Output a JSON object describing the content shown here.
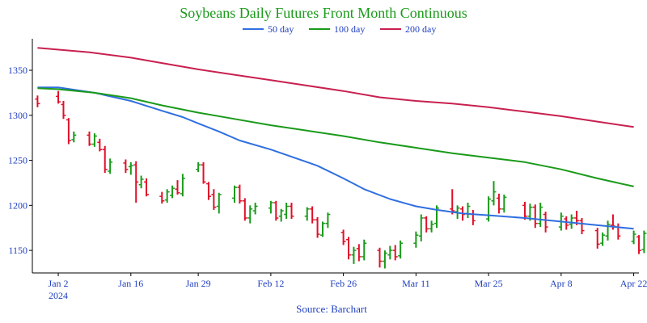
{
  "chart_data": {
    "type": "candlestick-with-lines",
    "title": "Soybeans Daily Futures Front Month Continuous",
    "source": "Source: Barchart",
    "ylim": [
      1125,
      1385
    ],
    "xlim": [
      "2023-12-28",
      "2024-04-23"
    ],
    "y_ticks": [
      1150,
      1200,
      1250,
      1300,
      1350
    ],
    "x_ticks": [
      {
        "date": "2024-01-02",
        "label": "Jan 2",
        "sublabel": "2024"
      },
      {
        "date": "2024-01-16",
        "label": "Jan 16",
        "sublabel": ""
      },
      {
        "date": "2024-01-29",
        "label": "Jan 29",
        "sublabel": ""
      },
      {
        "date": "2024-02-12",
        "label": "Feb 12",
        "sublabel": ""
      },
      {
        "date": "2024-02-26",
        "label": "Feb 26",
        "sublabel": ""
      },
      {
        "date": "2024-03-11",
        "label": "Mar 11",
        "sublabel": ""
      },
      {
        "date": "2024-03-25",
        "label": "Mar 25",
        "sublabel": ""
      },
      {
        "date": "2024-04-08",
        "label": "Apr 8",
        "sublabel": ""
      },
      {
        "date": "2024-04-22",
        "label": "Apr 22",
        "sublabel": ""
      }
    ],
    "colors": {
      "up": "#1a9a1a",
      "down": "#e0102a"
    },
    "legend": [
      {
        "name": "50 day",
        "color": "#2f6fdf"
      },
      {
        "name": "100 day",
        "color": "#1a9a1a"
      },
      {
        "name": "200 day",
        "color": "#c82050"
      }
    ],
    "series": [
      {
        "name": "50 day",
        "color": "#2f6fdf",
        "points": [
          [
            "2023-12-29",
            1331
          ],
          [
            "2024-01-02",
            1331
          ],
          [
            "2024-01-09",
            1325
          ],
          [
            "2024-01-16",
            1316
          ],
          [
            "2024-01-22",
            1305
          ],
          [
            "2024-01-26",
            1298
          ],
          [
            "2024-01-29",
            1291
          ],
          [
            "2024-02-02",
            1282
          ],
          [
            "2024-02-06",
            1272
          ],
          [
            "2024-02-12",
            1262
          ],
          [
            "2024-02-17",
            1252
          ],
          [
            "2024-02-21",
            1244
          ],
          [
            "2024-02-26",
            1230
          ],
          [
            "2024-03-01",
            1218
          ],
          [
            "2024-03-06",
            1207
          ],
          [
            "2024-03-11",
            1199
          ],
          [
            "2024-03-15",
            1195
          ],
          [
            "2024-03-20",
            1191
          ],
          [
            "2024-03-25",
            1189
          ],
          [
            "2024-04-01",
            1186
          ],
          [
            "2024-04-08",
            1182
          ],
          [
            "2024-04-15",
            1178
          ],
          [
            "2024-04-22",
            1174
          ]
        ]
      },
      {
        "name": "100 day",
        "color": "#1a9a1a",
        "points": [
          [
            "2023-12-29",
            1330
          ],
          [
            "2024-01-02",
            1329
          ],
          [
            "2024-01-09",
            1325
          ],
          [
            "2024-01-16",
            1319
          ],
          [
            "2024-01-22",
            1311
          ],
          [
            "2024-01-29",
            1303
          ],
          [
            "2024-02-05",
            1296
          ],
          [
            "2024-02-12",
            1289
          ],
          [
            "2024-02-19",
            1283
          ],
          [
            "2024-02-26",
            1277
          ],
          [
            "2024-03-04",
            1270
          ],
          [
            "2024-03-11",
            1264
          ],
          [
            "2024-03-18",
            1258
          ],
          [
            "2024-03-25",
            1253
          ],
          [
            "2024-04-01",
            1248
          ],
          [
            "2024-04-08",
            1240
          ],
          [
            "2024-04-15",
            1230
          ],
          [
            "2024-04-22",
            1221
          ]
        ]
      },
      {
        "name": "200 day",
        "color": "#c82050",
        "points": [
          [
            "2023-12-29",
            1375
          ],
          [
            "2024-01-08",
            1370
          ],
          [
            "2024-01-16",
            1364
          ],
          [
            "2024-01-22",
            1358
          ],
          [
            "2024-01-29",
            1351
          ],
          [
            "2024-02-05",
            1345
          ],
          [
            "2024-02-12",
            1339
          ],
          [
            "2024-02-19",
            1333
          ],
          [
            "2024-02-26",
            1327
          ],
          [
            "2024-03-04",
            1320
          ],
          [
            "2024-03-11",
            1316
          ],
          [
            "2024-03-18",
            1313
          ],
          [
            "2024-03-25",
            1309
          ],
          [
            "2024-04-01",
            1304
          ],
          [
            "2024-04-08",
            1299
          ],
          [
            "2024-04-15",
            1293
          ],
          [
            "2024-04-22",
            1287
          ]
        ]
      }
    ],
    "ohlc": [
      [
        "2023-12-29",
        1318,
        1322,
        1309,
        1313
      ],
      [
        "2024-01-02",
        1321,
        1327,
        1313,
        1315
      ],
      [
        "2024-01-03",
        1312,
        1316,
        1296,
        1300
      ],
      [
        "2024-01-04",
        1295,
        1297,
        1268,
        1272
      ],
      [
        "2024-01-05",
        1273,
        1282,
        1270,
        1278
      ],
      [
        "2024-01-08",
        1278,
        1282,
        1266,
        1268
      ],
      [
        "2024-01-09",
        1268,
        1280,
        1265,
        1277
      ],
      [
        "2024-01-10",
        1270,
        1274,
        1260,
        1262
      ],
      [
        "2024-01-11",
        1262,
        1266,
        1236,
        1240
      ],
      [
        "2024-01-12",
        1238,
        1252,
        1235,
        1248
      ],
      [
        "2024-01-15",
        1247,
        1251,
        1236,
        1240
      ],
      [
        "2024-01-16",
        1243,
        1248,
        1234,
        1244
      ],
      [
        "2024-01-17",
        1245,
        1249,
        1203,
        1226
      ],
      [
        "2024-01-18",
        1223,
        1233,
        1219,
        1229
      ],
      [
        "2024-01-19",
        1226,
        1230,
        1210,
        1212
      ],
      [
        "2024-01-22",
        1210,
        1215,
        1202,
        1205
      ],
      [
        "2024-01-23",
        1206,
        1218,
        1203,
        1215
      ],
      [
        "2024-01-24",
        1211,
        1222,
        1208,
        1219
      ],
      [
        "2024-01-25",
        1218,
        1228,
        1212,
        1214
      ],
      [
        "2024-01-26",
        1213,
        1235,
        1210,
        1230
      ],
      [
        "2024-01-29",
        1240,
        1248,
        1237,
        1245
      ],
      [
        "2024-01-30",
        1245,
        1248,
        1224,
        1226
      ],
      [
        "2024-01-31",
        1224,
        1226,
        1206,
        1210
      ],
      [
        "2024-02-01",
        1212,
        1218,
        1195,
        1198
      ],
      [
        "2024-02-02",
        1199,
        1214,
        1191,
        1212
      ],
      [
        "2024-02-05",
        1208,
        1222,
        1203,
        1220
      ],
      [
        "2024-02-06",
        1220,
        1223,
        1202,
        1205
      ],
      [
        "2024-02-07",
        1205,
        1208,
        1183,
        1186
      ],
      [
        "2024-02-08",
        1186,
        1200,
        1180,
        1196
      ],
      [
        "2024-02-09",
        1194,
        1203,
        1190,
        1199
      ],
      [
        "2024-02-12",
        1197,
        1205,
        1191,
        1203
      ],
      [
        "2024-02-13",
        1203,
        1205,
        1183,
        1186
      ],
      [
        "2024-02-14",
        1188,
        1196,
        1182,
        1194
      ],
      [
        "2024-02-15",
        1190,
        1203,
        1185,
        1199
      ],
      [
        "2024-02-16",
        1199,
        1203,
        1185,
        1188
      ],
      [
        "2024-02-19",
        1188,
        1198,
        1183,
        1196
      ],
      [
        "2024-02-20",
        1196,
        1199,
        1180,
        1184
      ],
      [
        "2024-02-21",
        1184,
        1187,
        1164,
        1168
      ],
      [
        "2024-02-22",
        1167,
        1182,
        1165,
        1180
      ],
      [
        "2024-02-23",
        1180,
        1192,
        1175,
        1190
      ],
      [
        "2024-02-26",
        1170,
        1173,
        1156,
        1160
      ],
      [
        "2024-02-27",
        1162,
        1165,
        1140,
        1145
      ],
      [
        "2024-02-28",
        1145,
        1154,
        1135,
        1150
      ],
      [
        "2024-02-29",
        1152,
        1157,
        1138,
        1143
      ],
      [
        "2024-03-01",
        1143,
        1162,
        1139,
        1158
      ],
      [
        "2024-03-04",
        1150,
        1153,
        1131,
        1138
      ],
      [
        "2024-03-05",
        1138,
        1150,
        1130,
        1147
      ],
      [
        "2024-03-06",
        1145,
        1155,
        1140,
        1150
      ],
      [
        "2024-03-07",
        1150,
        1156,
        1139,
        1143
      ],
      [
        "2024-03-08",
        1144,
        1161,
        1141,
        1158
      ],
      [
        "2024-03-11",
        1158,
        1171,
        1153,
        1167
      ],
      [
        "2024-03-12",
        1166,
        1190,
        1160,
        1186
      ],
      [
        "2024-03-13",
        1186,
        1188,
        1170,
        1174
      ],
      [
        "2024-03-14",
        1174,
        1183,
        1170,
        1179
      ],
      [
        "2024-03-15",
        1180,
        1200,
        1175,
        1197
      ],
      [
        "2024-03-18",
        1196,
        1218,
        1190,
        1194
      ],
      [
        "2024-03-19",
        1193,
        1200,
        1185,
        1197
      ],
      [
        "2024-03-20",
        1196,
        1199,
        1183,
        1190
      ],
      [
        "2024-03-21",
        1191,
        1203,
        1186,
        1199
      ],
      [
        "2024-03-22",
        1190,
        1195,
        1178,
        1183
      ],
      [
        "2024-03-25",
        1185,
        1210,
        1182,
        1207
      ],
      [
        "2024-03-26",
        1205,
        1227,
        1200,
        1215
      ],
      [
        "2024-03-27",
        1208,
        1213,
        1191,
        1196
      ],
      [
        "2024-03-28",
        1196,
        1212,
        1192,
        1209
      ],
      [
        "2024-04-01",
        1200,
        1204,
        1184,
        1188
      ],
      [
        "2024-04-02",
        1188,
        1202,
        1183,
        1198
      ],
      [
        "2024-04-03",
        1198,
        1201,
        1175,
        1180
      ],
      [
        "2024-04-04",
        1180,
        1203,
        1176,
        1198
      ],
      [
        "2024-04-05",
        1190,
        1193,
        1170,
        1176
      ],
      [
        "2024-04-08",
        1176,
        1192,
        1172,
        1188
      ],
      [
        "2024-04-09",
        1185,
        1188,
        1173,
        1178
      ],
      [
        "2024-04-10",
        1179,
        1190,
        1174,
        1186
      ],
      [
        "2024-04-11",
        1186,
        1194,
        1178,
        1183
      ],
      [
        "2024-04-12",
        1183,
        1186,
        1168,
        1172
      ],
      [
        "2024-04-15",
        1172,
        1175,
        1152,
        1157
      ],
      [
        "2024-04-16",
        1158,
        1170,
        1155,
        1167
      ],
      [
        "2024-04-17",
        1166,
        1183,
        1161,
        1179
      ],
      [
        "2024-04-18",
        1178,
        1190,
        1173,
        1177
      ],
      [
        "2024-04-19",
        1176,
        1180,
        1162,
        1166
      ],
      [
        "2024-04-22",
        1160,
        1172,
        1157,
        1168
      ],
      [
        "2024-04-23",
        1165,
        1167,
        1146,
        1150
      ],
      [
        "2024-04-24",
        1151,
        1172,
        1147,
        1169
      ],
      [
        "2024-04-25",
        1162,
        1184,
        1158,
        1178
      ]
    ]
  }
}
